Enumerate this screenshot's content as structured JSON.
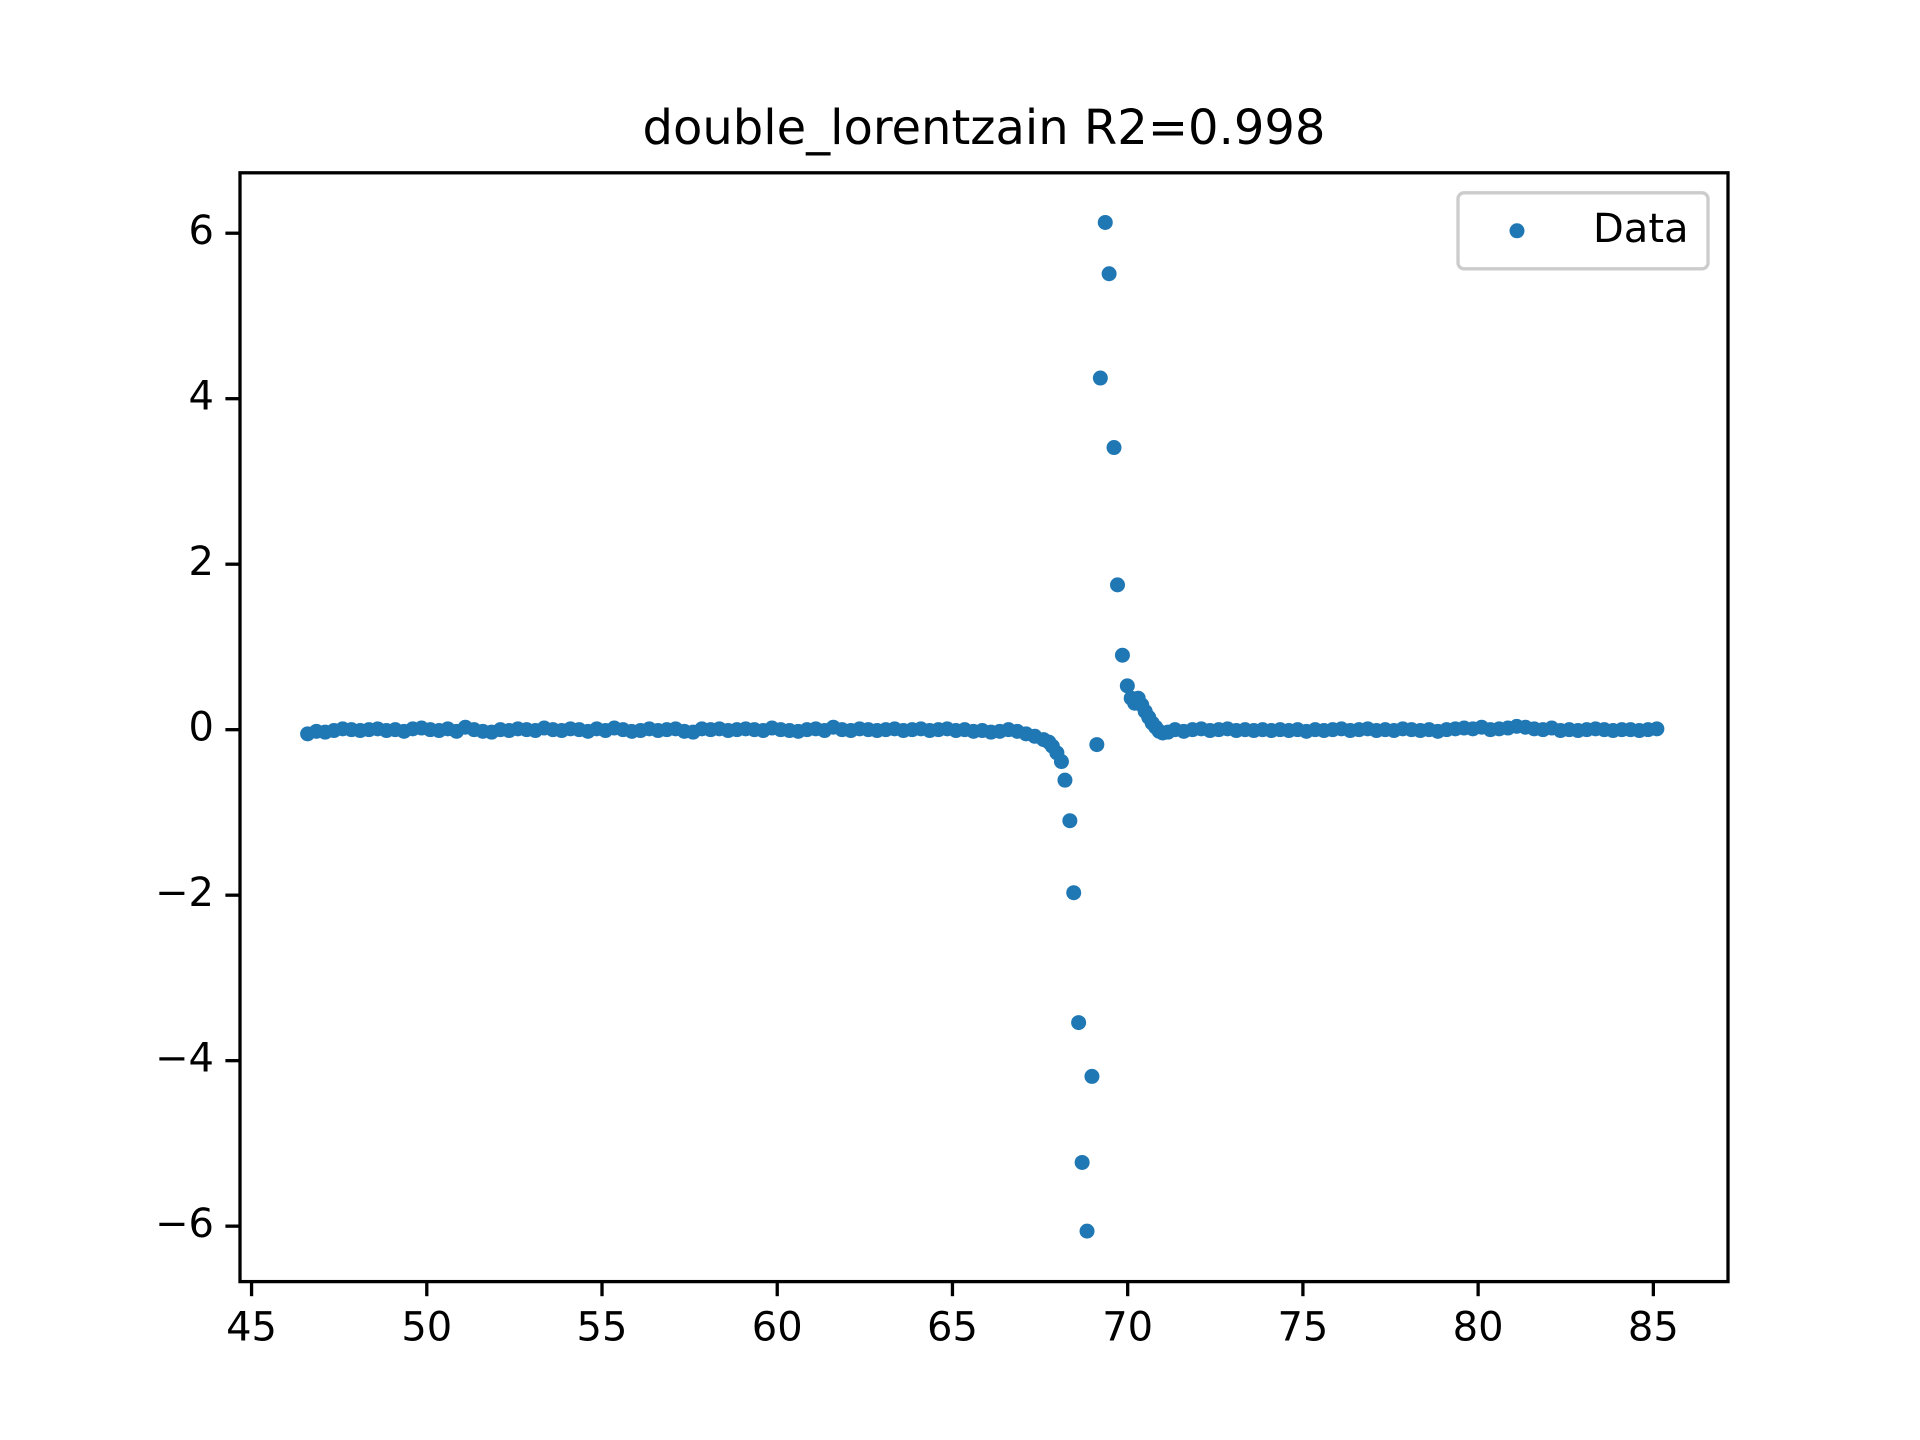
{
  "chart_data": {
    "type": "scatter",
    "title": "double_lorentzain R2=0.998",
    "x": [
      46.6,
      46.85,
      47.1,
      47.35,
      47.6,
      47.85,
      48.1,
      48.35,
      48.6,
      48.85,
      49.1,
      49.35,
      49.6,
      49.85,
      50.1,
      50.35,
      50.6,
      50.85,
      51.1,
      51.35,
      51.6,
      51.85,
      52.1,
      52.35,
      52.6,
      52.85,
      53.1,
      53.35,
      53.6,
      53.85,
      54.1,
      54.35,
      54.6,
      54.85,
      55.1,
      55.35,
      55.6,
      55.85,
      56.1,
      56.35,
      56.6,
      56.85,
      57.1,
      57.35,
      57.6,
      57.85,
      58.1,
      58.35,
      58.6,
      58.85,
      59.1,
      59.35,
      59.6,
      59.85,
      60.1,
      60.35,
      60.6,
      60.85,
      61.1,
      61.35,
      61.6,
      61.85,
      62.1,
      62.35,
      62.6,
      62.85,
      63.1,
      63.35,
      63.6,
      63.85,
      64.1,
      64.35,
      64.6,
      64.85,
      65.1,
      65.35,
      65.6,
      65.85,
      66.1,
      66.35,
      66.6,
      66.85,
      67.1,
      67.35,
      67.6,
      67.75,
      67.85,
      67.98,
      68.11,
      68.21,
      68.35,
      68.46,
      68.6,
      68.7,
      68.84,
      68.98,
      69.12,
      69.22,
      69.36,
      69.47,
      69.61,
      69.71,
      69.85,
      69.99,
      70.1,
      70.2,
      70.3,
      70.4,
      70.5,
      70.6,
      70.7,
      70.8,
      70.9,
      71.0,
      71.15,
      71.35,
      71.6,
      71.85,
      72.1,
      72.35,
      72.6,
      72.85,
      73.1,
      73.35,
      73.6,
      73.85,
      74.1,
      74.35,
      74.6,
      74.85,
      75.1,
      75.35,
      75.6,
      75.85,
      76.1,
      76.35,
      76.6,
      76.85,
      77.1,
      77.35,
      77.6,
      77.85,
      78.1,
      78.35,
      78.6,
      78.85,
      79.1,
      79.35,
      79.6,
      79.85,
      80.1,
      80.35,
      80.6,
      80.85,
      81.1,
      81.35,
      81.6,
      81.85,
      82.1,
      82.35,
      82.6,
      82.85,
      83.1,
      83.35,
      83.6,
      83.85,
      84.1,
      84.35,
      84.6,
      84.85,
      85.1
    ],
    "series": [
      {
        "name": "Data",
        "color": "#1f77b4",
        "values": [
          -0.05,
          -0.02,
          -0.03,
          -0.01,
          0.01,
          0.0,
          -0.01,
          0.0,
          0.01,
          -0.01,
          0.0,
          -0.02,
          0.01,
          0.02,
          0.0,
          -0.01,
          0.01,
          -0.02,
          0.03,
          0.0,
          -0.02,
          -0.03,
          0.0,
          -0.01,
          0.01,
          0.0,
          -0.01,
          0.02,
          0.0,
          -0.01,
          0.01,
          0.0,
          -0.02,
          0.01,
          -0.01,
          0.02,
          0.0,
          -0.02,
          -0.01,
          0.01,
          -0.01,
          0.0,
          0.01,
          -0.02,
          -0.03,
          0.01,
          0.0,
          0.01,
          -0.01,
          0.0,
          0.01,
          0.0,
          -0.01,
          0.02,
          0.0,
          -0.01,
          -0.02,
          0.0,
          0.01,
          -0.01,
          0.03,
          0.0,
          -0.01,
          0.01,
          0.0,
          -0.01,
          0.0,
          0.01,
          -0.01,
          0.0,
          0.01,
          -0.01,
          0.0,
          0.01,
          -0.01,
          0.0,
          -0.02,
          -0.01,
          -0.03,
          -0.02,
          0.0,
          -0.02,
          -0.05,
          -0.08,
          -0.12,
          -0.15,
          -0.2,
          -0.28,
          -0.385,
          -0.61,
          -1.1,
          -1.97,
          -3.54,
          -5.23,
          -6.06,
          -4.19,
          -0.18,
          4.25,
          6.13,
          5.51,
          3.41,
          1.75,
          0.9,
          0.53,
          0.38,
          0.32,
          0.38,
          0.3,
          0.22,
          0.15,
          0.08,
          0.03,
          -0.02,
          -0.04,
          -0.03,
          0.0,
          -0.02,
          0.0,
          0.01,
          -0.01,
          0.0,
          0.01,
          -0.01,
          0.0,
          -0.01,
          0.0,
          -0.01,
          0.0,
          -0.01,
          0.0,
          -0.02,
          0.0,
          -0.01,
          0.0,
          0.01,
          -0.01,
          0.0,
          0.01,
          -0.01,
          0.0,
          -0.01,
          0.01,
          0.0,
          -0.01,
          0.0,
          -0.02,
          0.0,
          0.01,
          0.02,
          0.01,
          0.03,
          0.0,
          0.01,
          0.02,
          0.04,
          0.03,
          0.01,
          0.0,
          0.02,
          -0.01,
          0.0,
          -0.01,
          0.0,
          0.01,
          0.0,
          -0.01,
          0.0,
          0.0,
          -0.01,
          0.0,
          0.01
        ]
      }
    ],
    "xlim": [
      44.67,
      87.13
    ],
    "ylim": [
      -6.67,
      6.73
    ],
    "xticks": [
      45,
      50,
      55,
      60,
      65,
      70,
      75,
      80,
      85
    ],
    "yticks": [
      {
        "value": -6,
        "label": "−6"
      },
      {
        "value": -4,
        "label": "−4"
      },
      {
        "value": -2,
        "label": "−2"
      },
      0,
      2,
      4,
      6
    ],
    "legend": "upper right",
    "grid": false
  }
}
